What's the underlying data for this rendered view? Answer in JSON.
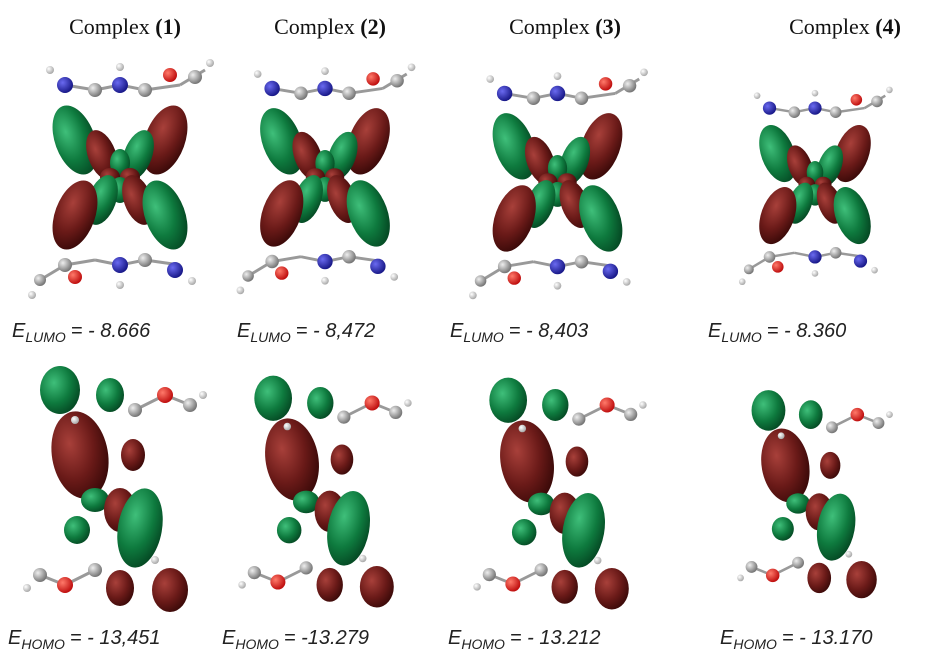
{
  "columns": [
    {
      "title_word": "Complex",
      "title_number": "(1)",
      "lumo": {
        "symbol": "E",
        "subscript": "LUMO",
        "value": "= - 8.666"
      },
      "homo": {
        "symbol": "E",
        "subscript": "HOMO",
        "value": "= - 13,451"
      }
    },
    {
      "title_word": "Complex",
      "title_number": "(2)",
      "lumo": {
        "symbol": "E",
        "subscript": "LUMO",
        "value": "= - 8,472"
      },
      "homo": {
        "symbol": "E",
        "subscript": "HOMO",
        "value": "= -13.279"
      }
    },
    {
      "title_word": "Complex",
      "title_number": "(3)",
      "lumo": {
        "symbol": "E",
        "subscript": "LUMO",
        "value": "= - 8,403"
      },
      "homo": {
        "symbol": "E",
        "subscript": "HOMO",
        "value": "= - 13.212"
      }
    },
    {
      "title_word": "Complex",
      "title_number": "(4)",
      "lumo": {
        "symbol": "E",
        "subscript": "LUMO",
        "value": "= - 8.360"
      },
      "homo": {
        "symbol": "E",
        "subscript": "HOMO",
        "value": "= - 13.170"
      }
    }
  ]
}
